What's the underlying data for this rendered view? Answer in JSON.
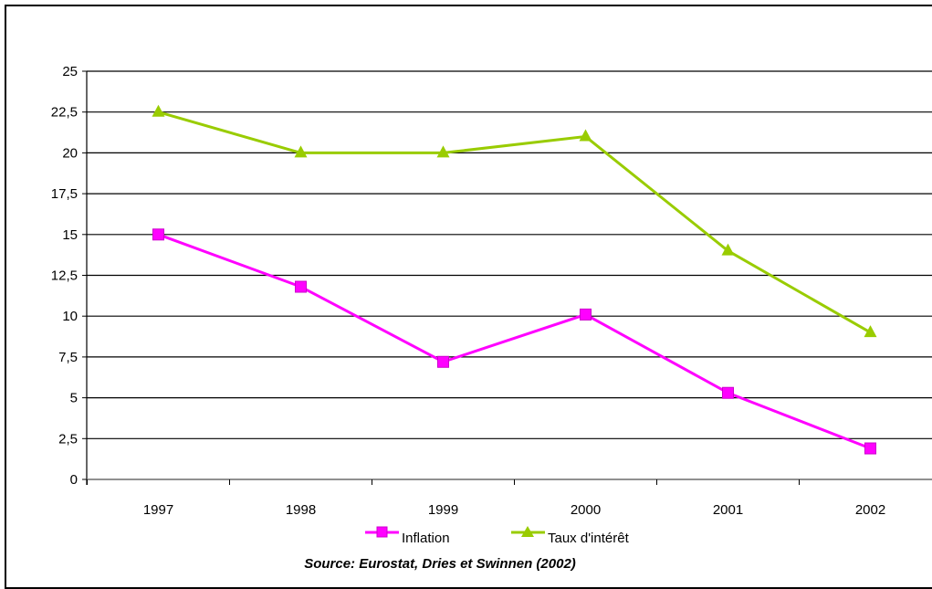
{
  "chart_data": {
    "type": "line",
    "categories": [
      "1997",
      "1998",
      "1999",
      "2000",
      "2001",
      "2002"
    ],
    "ylim": [
      0,
      25
    ],
    "yticks": [
      "0",
      "2,5",
      "5",
      "7,5",
      "10",
      "12,5",
      "15",
      "17,5",
      "20",
      "22,5",
      "25"
    ],
    "grid": true,
    "legend_position": "bottom",
    "series": [
      {
        "name": "Inflation",
        "values": [
          15.0,
          11.8,
          7.2,
          10.1,
          5.3,
          1.9
        ],
        "color": "#ff00ff",
        "marker": "square"
      },
      {
        "name": "Taux d'intérêt",
        "values": [
          22.5,
          20.0,
          20.0,
          21.0,
          14.0,
          9.0
        ],
        "color": "#99cc00",
        "marker": "triangle"
      }
    ],
    "source": "Source: Eurostat, Dries et Swinnen (2002)"
  }
}
